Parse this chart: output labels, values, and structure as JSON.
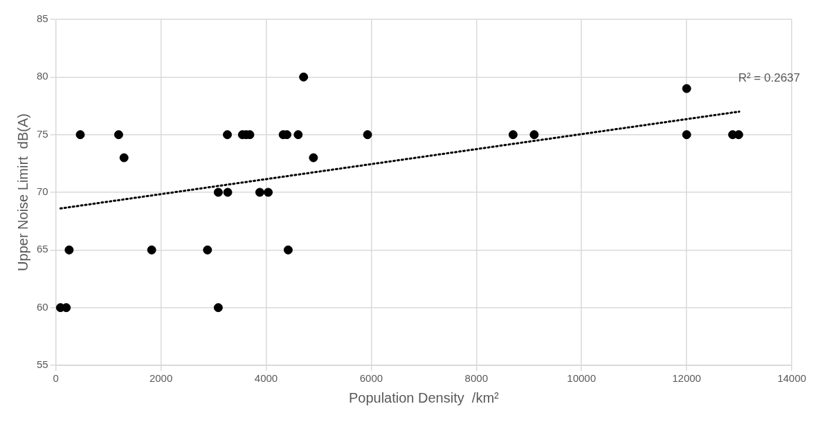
{
  "chart_data": {
    "type": "scatter",
    "xlabel": "Population Density  /km²",
    "ylabel": "Upper Noise Limirt  dB(A)",
    "xlim": [
      0,
      14000
    ],
    "xticks": [
      0,
      2000,
      4000,
      6000,
      8000,
      10000,
      12000,
      14000
    ],
    "ylim": [
      55,
      85
    ],
    "yticks": [
      55,
      60,
      65,
      70,
      75,
      80,
      85
    ],
    "grid": true,
    "legend": false,
    "marker": "circle",
    "annotations": [
      "R² = 0.2637"
    ],
    "series": [
      {
        "type": "scatter",
        "color": "#000000",
        "x": [
          88,
          198,
          3090,
          253,
          1823,
          2885,
          4420,
          3090,
          3230,
          3270,
          3880,
          4040,
          1297,
          4900,
          465,
          1195,
          3263,
          3550,
          3620,
          3690,
          4325,
          4395,
          4610,
          5930,
          8698,
          9100,
          12000,
          12830,
          12875,
          12990,
          4713,
          12000
        ],
        "values": [
          60,
          60,
          60,
          65,
          65,
          65,
          65,
          70,
          null,
          70,
          70,
          70,
          73,
          73,
          75,
          75,
          75,
          75,
          75,
          75,
          75,
          75,
          75,
          75,
          75,
          75,
          75,
          null,
          75,
          75,
          80,
          79
        ]
      },
      {
        "type": "line",
        "color": "#000000",
        "line_style": "dotted",
        "marker": "none",
        "x": [
          88,
          13000
        ],
        "values": [
          68.6,
          77.0
        ]
      }
    ]
  }
}
